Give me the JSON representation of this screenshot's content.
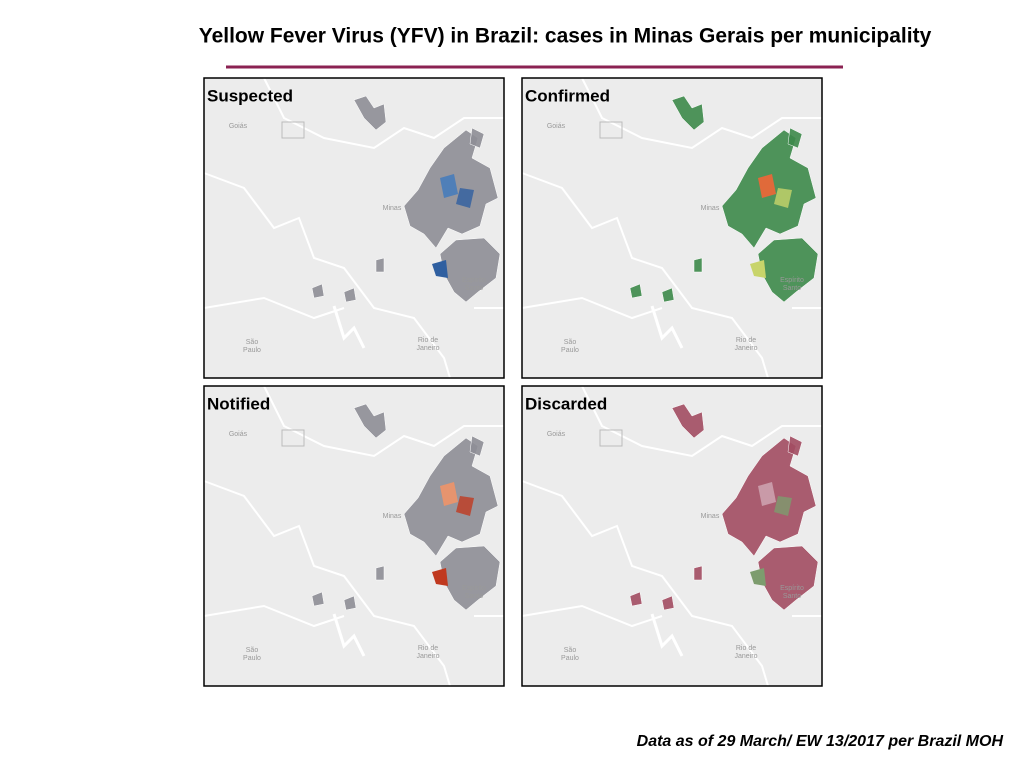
{
  "header": {
    "title": "Yellow Fever Virus (YFV) in Brazil: cases in Minas Gerais per municipality"
  },
  "panels": [
    {
      "label": "Suspected"
    },
    {
      "label": "Confirmed"
    },
    {
      "label": "Notified"
    },
    {
      "label": "Discarded"
    }
  ],
  "map_labels": {
    "goias": "Goiás",
    "minas": "Minas",
    "espirito": "Espírito",
    "santo": "Santo",
    "sao": "São",
    "paulo": "Paulo",
    "rio": "Rio de",
    "janeiro": "Janeiro"
  },
  "footer": {
    "note": "Data as of 29 March/ EW 13/2017 per Brazil MOH"
  }
}
